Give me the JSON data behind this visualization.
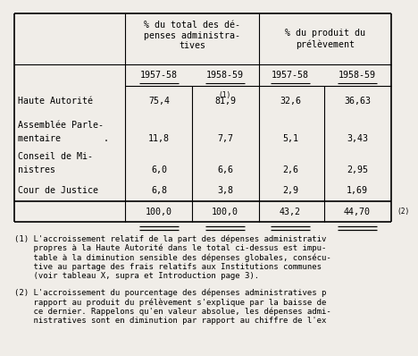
{
  "col_headers_top": [
    "% du total des dé-\npenses administra-\ntives",
    "% du produit du\nprélèvement"
  ],
  "col_headers_sub": [
    "1957-58",
    "1958-59",
    "1957-58",
    "1958-59"
  ],
  "rows": [
    {
      "label1": "Haute Autorité",
      "label2": "",
      "values": [
        "75,4",
        "81,9",
        "32,6",
        "36,63"
      ],
      "note": "(1)"
    },
    {
      "label1": "Assemblée Parle-",
      "label2": "mentaire        .",
      "values": [
        "11,8",
        "7,7",
        "5,1",
        "3,43"
      ],
      "note": ""
    },
    {
      "label1": "Conseil de Mi-",
      "label2": "nistres",
      "values": [
        "6,0",
        "6,6",
        "2,6",
        "2,95"
      ],
      "note": ""
    },
    {
      "label1": "Cour de Justice",
      "label2": "",
      "values": [
        "6,8",
        "3,8",
        "2,9",
        "1,69"
      ],
      "note": ""
    }
  ],
  "totals": [
    "100,0",
    "100,0",
    "43,2",
    "44,70"
  ],
  "total_note": "(2)",
  "footnote1_lines": [
    "(1) L'accroissement relatif de la part des dépenses administrativ",
    "    propres à la Haute Autorité dans le total ci-dessus est impu-",
    "    table à la diminution sensible des dépenses globales, consécu-",
    "    tive au partage des frais relatifs aux Institutions communes",
    "    (voir tableau X, supra et Introduction page 3)."
  ],
  "footnote2_lines": [
    "(2) L'accroissement du pourcentage des dépenses administratives p",
    "    rapport au produit du prélèvement s'explique par la baisse de",
    "    ce dernier. Rappelons qu'en valeur absolue, les dépenses admi-",
    "    nistratives sont en diminution par rapport au chiffre de l'ex"
  ],
  "bg_color": "#f0ede8",
  "text_color": "#000000",
  "table_font_size": 7.2,
  "footnote_font_size": 6.5
}
